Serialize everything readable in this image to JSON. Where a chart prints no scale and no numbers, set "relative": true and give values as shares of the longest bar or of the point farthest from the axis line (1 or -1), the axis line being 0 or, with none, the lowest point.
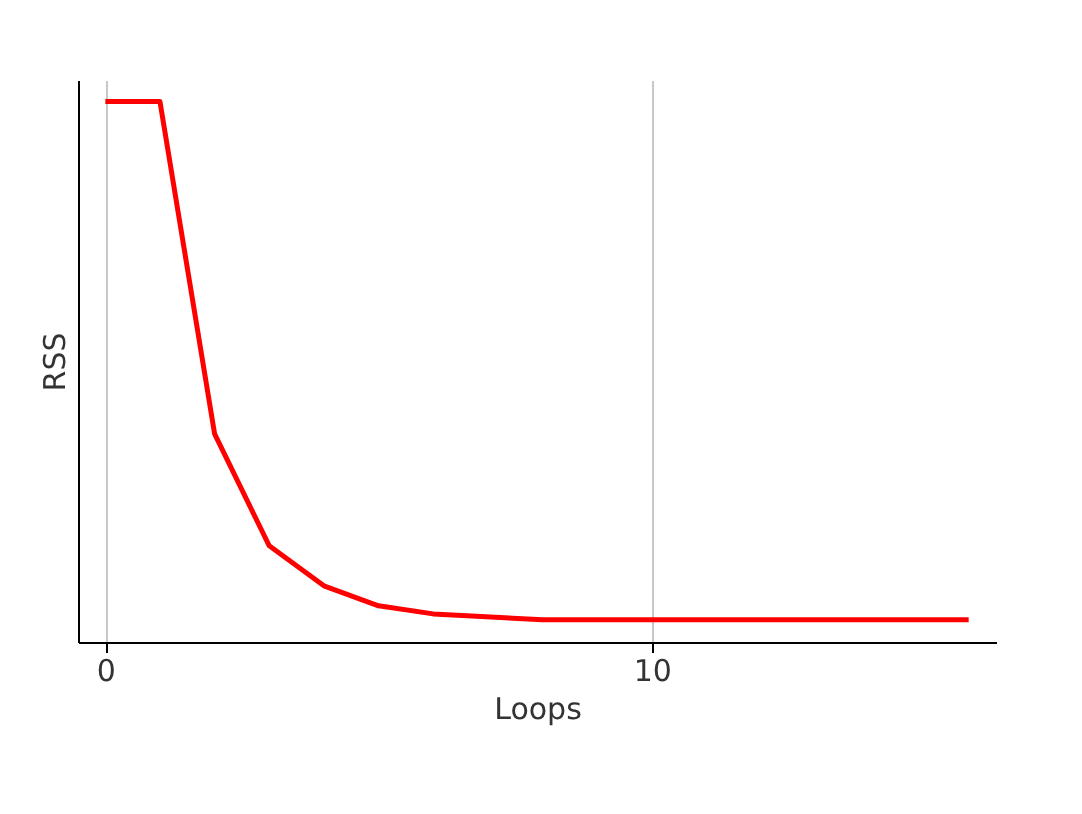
{
  "chart_data": {
    "type": "line",
    "relative": true,
    "xlabel": "Loops",
    "ylabel": "RSS",
    "xlim": [
      -0.5,
      16.3
    ],
    "xticks": [
      0,
      10
    ],
    "grid": "x",
    "marker": "none",
    "line_style": "solid",
    "series": [
      {
        "color": "#ff0000",
        "x": [
          0,
          1,
          2,
          3,
          4,
          5,
          6,
          8,
          15.8
        ],
        "values": [
          1,
          1,
          0.385,
          0.178,
          0.104,
          0.067,
          0.052,
          0.041,
          0.041
        ]
      }
    ]
  }
}
